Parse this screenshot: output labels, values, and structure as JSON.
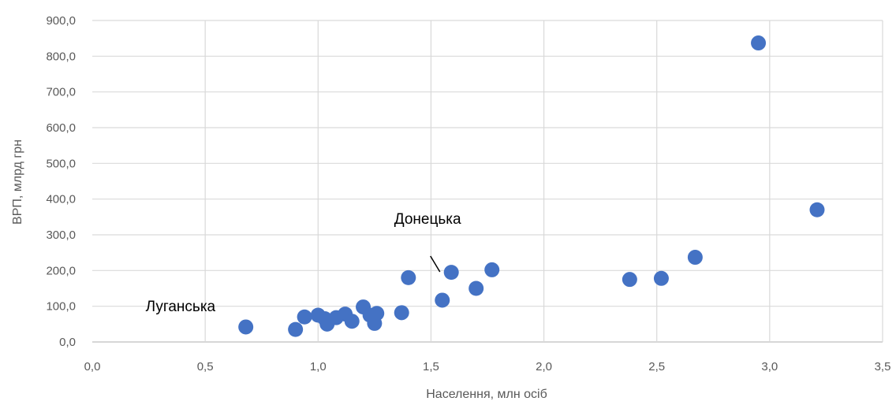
{
  "chart_data": {
    "type": "scatter",
    "xlabel": "Населення, млн осіб",
    "ylabel": "ВРП, млрд грн",
    "xlim": [
      0,
      3.5
    ],
    "ylim": [
      0,
      900
    ],
    "x_ticks": [
      0,
      0.5,
      1.0,
      1.5,
      2.0,
      2.5,
      3.0,
      3.5
    ],
    "y_ticks": [
      0,
      100,
      200,
      300,
      400,
      500,
      600,
      700,
      800,
      900
    ],
    "x_tick_labels": [
      "0,0",
      "0,5",
      "1,0",
      "1,5",
      "2,0",
      "2,5",
      "3,0",
      "3,5"
    ],
    "y_tick_labels": [
      "0,0",
      "100,0",
      "200,0",
      "300,0",
      "400,0",
      "500,0",
      "600,0",
      "700,0",
      "800,0",
      "900,0"
    ],
    "grid": true,
    "marker_color": "#4472c4",
    "points": [
      {
        "x": 0.68,
        "y": 42
      },
      {
        "x": 0.9,
        "y": 35
      },
      {
        "x": 0.94,
        "y": 70
      },
      {
        "x": 1.0,
        "y": 75
      },
      {
        "x": 1.03,
        "y": 65
      },
      {
        "x": 1.04,
        "y": 50
      },
      {
        "x": 1.08,
        "y": 68
      },
      {
        "x": 1.12,
        "y": 78
      },
      {
        "x": 1.15,
        "y": 58
      },
      {
        "x": 1.2,
        "y": 98
      },
      {
        "x": 1.23,
        "y": 75
      },
      {
        "x": 1.25,
        "y": 52
      },
      {
        "x": 1.26,
        "y": 80
      },
      {
        "x": 1.37,
        "y": 82
      },
      {
        "x": 1.4,
        "y": 180
      },
      {
        "x": 1.55,
        "y": 117
      },
      {
        "x": 1.59,
        "y": 195
      },
      {
        "x": 1.7,
        "y": 150
      },
      {
        "x": 1.77,
        "y": 202
      },
      {
        "x": 2.38,
        "y": 175
      },
      {
        "x": 2.52,
        "y": 178
      },
      {
        "x": 2.67,
        "y": 237
      },
      {
        "x": 2.95,
        "y": 837
      },
      {
        "x": 3.21,
        "y": 370
      }
    ],
    "annotations": [
      {
        "text": "Луганська",
        "point_index": 0
      },
      {
        "text": "Донецька",
        "point_index": 15
      }
    ]
  }
}
